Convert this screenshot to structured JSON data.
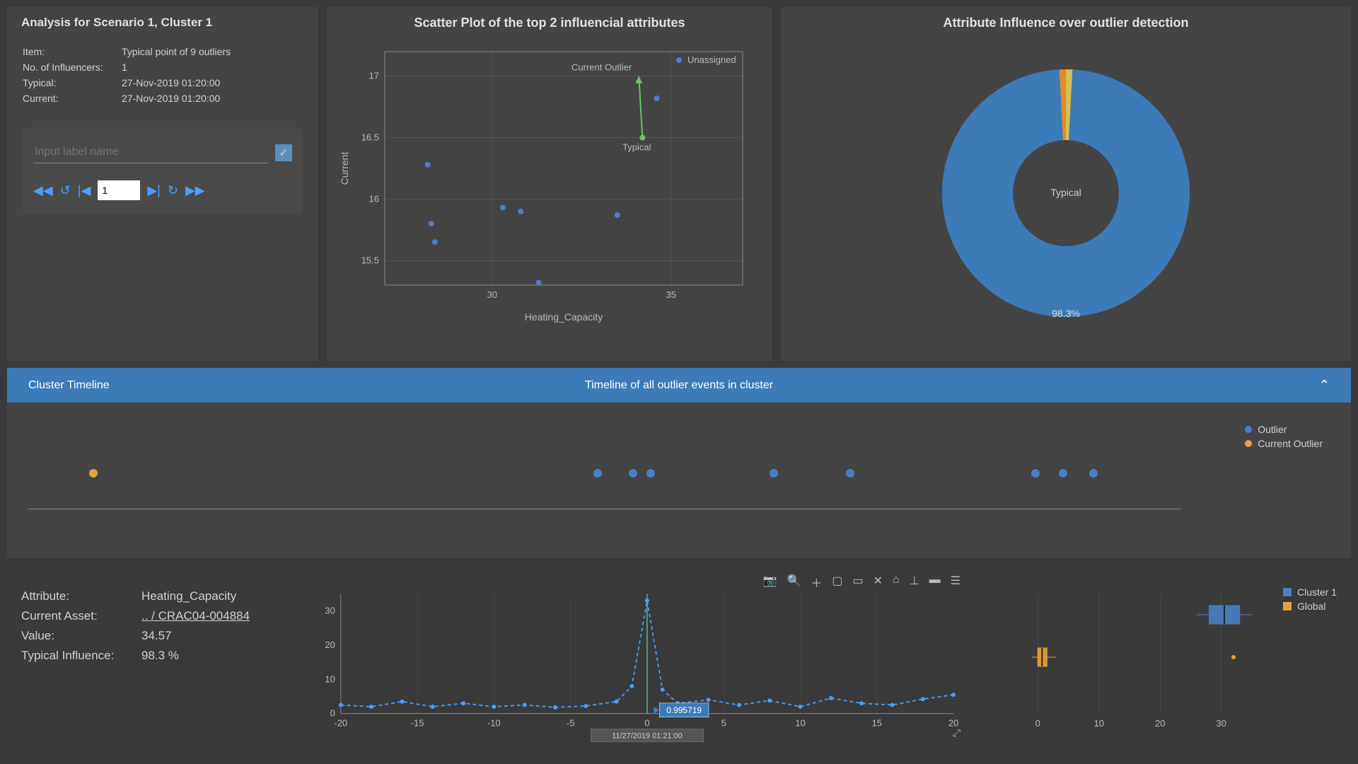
{
  "analysis": {
    "title": "Analysis for Scenario 1, Cluster 1",
    "rows": [
      {
        "label": "Item:",
        "value": "Typical point of 9 outliers"
      },
      {
        "label": "No. of Influencers:",
        "value": "1"
      },
      {
        "label": "Typical:",
        "value": "27-Nov-2019 01:20:00"
      },
      {
        "label": "Current:",
        "value": "27-Nov-2019 01:20:00"
      }
    ],
    "input_placeholder": "Input label name",
    "step_value": "1"
  },
  "scatter": {
    "title": "Scatter Plot of the top 2 influencial attributes",
    "xlabel": "Heating_Capacity",
    "ylabel": "Current",
    "xlim": [
      27,
      37
    ],
    "ylim": [
      15.3,
      17.2
    ],
    "xticks": [
      30,
      35
    ],
    "yticks": [
      15.5,
      16,
      16.5,
      17
    ],
    "grid_color": "#666666",
    "axis_color": "#888888",
    "text_color": "#b8b8b8",
    "point_color": "#4a7fc4",
    "points": [
      {
        "x": 28.2,
        "y": 16.28
      },
      {
        "x": 28.3,
        "y": 15.8
      },
      {
        "x": 28.4,
        "y": 15.65
      },
      {
        "x": 30.3,
        "y": 15.93
      },
      {
        "x": 30.8,
        "y": 15.9
      },
      {
        "x": 31.3,
        "y": 15.32
      },
      {
        "x": 33.5,
        "y": 15.87
      },
      {
        "x": 34.6,
        "y": 16.82
      }
    ],
    "current_outlier": {
      "x": 34.1,
      "y": 17.0,
      "label": "Current Outlier"
    },
    "typical": {
      "x": 34.2,
      "y": 16.5,
      "label": "Typical"
    },
    "arrow_color": "#6fbf6f",
    "legend_unassigned": "Unassigned"
  },
  "pie": {
    "title": "Attribute Influence over outlier detection",
    "center_label": "Typical",
    "pct_label": "98.3%",
    "main_color": "#3d7ab8",
    "slice_colors": [
      "#e28a2b",
      "#d4c055"
    ],
    "main_pct": 98.3,
    "bg": "#3a3a3a"
  },
  "timeline": {
    "header_left": "Cluster Timeline",
    "header_center": "Timeline of all outlier events in cluster",
    "outlier_label": "Outlier",
    "current_outlier_label": "Current Outlier",
    "outlier_color": "#4a7fc4",
    "current_color": "#e8a23a",
    "points": [
      {
        "pos": 5.3,
        "current": true
      },
      {
        "pos": 49.0,
        "current": false
      },
      {
        "pos": 52.1,
        "current": false
      },
      {
        "pos": 53.6,
        "current": false
      },
      {
        "pos": 64.3,
        "current": false
      },
      {
        "pos": 70.9,
        "current": false
      },
      {
        "pos": 87.0,
        "current": false
      },
      {
        "pos": 89.4,
        "current": false
      },
      {
        "pos": 92.0,
        "current": false
      }
    ]
  },
  "attr": {
    "rows": [
      {
        "label": "Attribute:",
        "value": "Heating_Capacity",
        "link": false
      },
      {
        "label": "Current Asset:",
        "value": ".. / CRAC04-004884",
        "link": true
      },
      {
        "label": "Value:",
        "value": "34.57",
        "link": false
      },
      {
        "label": "Typical Influence:",
        "value": "98.3 %",
        "link": false
      }
    ]
  },
  "line": {
    "xlim": [
      -20,
      20
    ],
    "ylim": [
      0,
      35
    ],
    "xticks": [
      -20,
      -15,
      -10,
      -5,
      0,
      5,
      10,
      15,
      20
    ],
    "yticks": [
      0,
      10,
      20,
      30
    ],
    "line_color": "#4a9eff",
    "marker_color": "#4a9eff",
    "grid_color": "#555555",
    "callout_value": "0.995719",
    "callout_bg": "#3d7ab8",
    "xlabel_bottom": "11/27/2019 01:21:00",
    "points": [
      {
        "x": -20,
        "y": 2.5
      },
      {
        "x": -18,
        "y": 2
      },
      {
        "x": -16,
        "y": 3.5
      },
      {
        "x": -14,
        "y": 2
      },
      {
        "x": -12,
        "y": 3
      },
      {
        "x": -10,
        "y": 2
      },
      {
        "x": -8,
        "y": 2.5
      },
      {
        "x": -6,
        "y": 1.8
      },
      {
        "x": -4,
        "y": 2.2
      },
      {
        "x": -2,
        "y": 3.5
      },
      {
        "x": -1,
        "y": 8
      },
      {
        "x": 0,
        "y": 33
      },
      {
        "x": 1,
        "y": 7
      },
      {
        "x": 2,
        "y": 3
      },
      {
        "x": 4,
        "y": 4
      },
      {
        "x": 6,
        "y": 2.5
      },
      {
        "x": 8,
        "y": 3.8
      },
      {
        "x": 10,
        "y": 2
      },
      {
        "x": 12,
        "y": 4.5
      },
      {
        "x": 14,
        "y": 3
      },
      {
        "x": 16,
        "y": 2.5
      },
      {
        "x": 18,
        "y": 4.2
      },
      {
        "x": 20,
        "y": 5.5
      }
    ]
  },
  "boxplot": {
    "xlim": [
      -2,
      35
    ],
    "xticks": [
      0,
      10,
      20,
      30
    ],
    "cluster_label": "Cluster 1",
    "global_label": "Global",
    "cluster_color": "#4a7fc4",
    "global_color": "#e8a23a",
    "cluster": {
      "q1": 28,
      "q3": 33,
      "med": 30.5,
      "whisker_lo": 26,
      "whisker_hi": 35,
      "y": 0
    },
    "global": {
      "q1": 0,
      "q3": 1.5,
      "med": 0.7,
      "whisker_lo": -1,
      "whisker_hi": 3,
      "y": 1,
      "outlier_x": 32
    }
  },
  "colors": {
    "panel_bg": "#444444",
    "body_bg": "#3a3a3a",
    "text": "#d0d0d0"
  }
}
